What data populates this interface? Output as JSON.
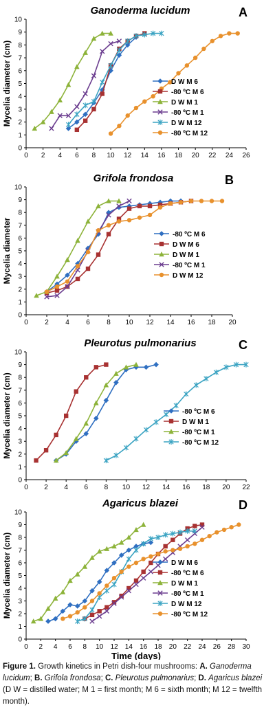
{
  "chart_data": [
    {
      "type": "line",
      "title": "Ganoderma lucidum",
      "letter": "A",
      "ylabel": "Mycelia diameter (cm)",
      "xlabel": "",
      "xlim": [
        0,
        26
      ],
      "ylim": [
        0,
        10
      ],
      "xticks": [
        0,
        2,
        4,
        6,
        8,
        10,
        12,
        14,
        16,
        18,
        20,
        22,
        24,
        26
      ],
      "yticks": [
        0,
        1,
        2,
        3,
        4,
        5,
        6,
        7,
        8,
        9,
        10
      ],
      "legend_position": "bottom-right",
      "series": [
        {
          "name": "D W M 6",
          "color": "#2f6fc1",
          "marker": "diamond",
          "x": [
            5,
            6,
            7,
            8,
            9,
            10,
            11,
            12,
            13
          ],
          "y": [
            1.5,
            2.0,
            2.6,
            3.5,
            4.5,
            6.0,
            7.2,
            8.0,
            8.6
          ]
        },
        {
          "name": "-80 ºC M 6",
          "color": "#a83232",
          "marker": "square",
          "x": [
            6,
            7,
            8,
            9,
            10,
            11,
            12,
            13,
            14
          ],
          "y": [
            1.4,
            2.1,
            3.0,
            4.2,
            6.4,
            7.7,
            8.3,
            8.7,
            8.9
          ]
        },
        {
          "name": "D W M 1",
          "color": "#8db33a",
          "marker": "triangle",
          "x": [
            1,
            2,
            3,
            4,
            5,
            6,
            7,
            8,
            9,
            10
          ],
          "y": [
            1.5,
            2.0,
            2.8,
            3.7,
            4.9,
            6.3,
            7.4,
            8.5,
            8.9,
            8.9
          ]
        },
        {
          "name": "-80 ºC M 1",
          "color": "#6b3d8f",
          "marker": "x",
          "x": [
            3,
            4,
            5,
            6,
            7,
            8,
            9,
            10,
            11
          ],
          "y": [
            1.5,
            2.5,
            2.5,
            3.2,
            4.2,
            5.6,
            7.5,
            8.1,
            8.3
          ]
        },
        {
          "name": "D W M 12",
          "color": "#3aa3c2",
          "marker": "star",
          "x": [
            5,
            6,
            7,
            8,
            9,
            10,
            11,
            12,
            13,
            14,
            15,
            16
          ],
          "y": [
            1.8,
            2.6,
            3.3,
            3.6,
            5.1,
            6.4,
            7.6,
            8.3,
            8.7,
            8.8,
            8.9,
            8.9
          ]
        },
        {
          "name": "-80 ºC M 12",
          "color": "#e8912d",
          "marker": "circle",
          "x": [
            10,
            11,
            12,
            13,
            14,
            15,
            16,
            17,
            18,
            19,
            20,
            21,
            22,
            23,
            24,
            25
          ],
          "y": [
            1.1,
            1.7,
            2.5,
            3.1,
            3.6,
            4.0,
            4.6,
            5.1,
            5.8,
            6.4,
            7.0,
            7.7,
            8.3,
            8.7,
            8.9,
            8.9
          ]
        }
      ]
    },
    {
      "type": "line",
      "title": "Grifola frondosa",
      "letter": "B",
      "ylabel": "Mycelia diameter",
      "xlabel": "",
      "xlim": [
        0,
        20
      ],
      "ylim": [
        0,
        10
      ],
      "xticks": [
        0,
        2,
        4,
        6,
        8,
        10,
        12,
        14,
        16,
        18,
        20
      ],
      "yticks": [
        0,
        1,
        2,
        3,
        4,
        5,
        6,
        7,
        8,
        9,
        10
      ],
      "legend_position": "right",
      "series": [
        {
          "name": "-80 ºC M 6",
          "color": "#2f6fc1",
          "marker": "diamond",
          "x": [
            2,
            3,
            4,
            5,
            6,
            7,
            8,
            9,
            10,
            11,
            12,
            13,
            14,
            15
          ],
          "y": [
            1.8,
            2.4,
            3.1,
            4.0,
            5.2,
            6.3,
            8.0,
            8.4,
            8.5,
            8.6,
            8.7,
            8.8,
            8.9,
            8.9
          ]
        },
        {
          "name": "D W M 6",
          "color": "#a83232",
          "marker": "square",
          "x": [
            2,
            3,
            4,
            5,
            6,
            7,
            8,
            9,
            10,
            11,
            12,
            13,
            14,
            15,
            16
          ],
          "y": [
            1.7,
            1.9,
            2.2,
            2.8,
            3.6,
            4.7,
            6.3,
            7.5,
            8.3,
            8.5,
            8.5,
            8.6,
            8.7,
            8.8,
            8.9
          ]
        },
        {
          "name": "D W M 1",
          "color": "#8db33a",
          "marker": "triangle",
          "x": [
            1,
            2,
            3,
            4,
            5,
            6,
            7,
            8,
            9
          ],
          "y": [
            1.5,
            1.8,
            3.0,
            4.3,
            5.8,
            7.3,
            8.5,
            8.9,
            8.9
          ]
        },
        {
          "name": "-80 ºC M 1",
          "color": "#6b3d8f",
          "marker": "x",
          "x": [
            2,
            3,
            4,
            5,
            6,
            7,
            8,
            9,
            10
          ],
          "y": [
            1.4,
            1.5,
            2.2,
            3.5,
            5.0,
            6.5,
            7.8,
            8.5,
            8.9
          ]
        },
        {
          "name": "D W M 12",
          "color": "#e8912d",
          "marker": "circle",
          "x": [
            2,
            3,
            4,
            5,
            6,
            7,
            8,
            9,
            10,
            11,
            12,
            13,
            14,
            15,
            16,
            17,
            18,
            19
          ],
          "y": [
            1.8,
            2.2,
            2.6,
            3.8,
            4.9,
            6.6,
            7.0,
            7.3,
            7.4,
            7.6,
            7.8,
            8.4,
            8.7,
            8.8,
            8.9,
            8.9,
            8.9,
            8.9
          ]
        }
      ]
    },
    {
      "type": "line",
      "title": "Pleurotus pulmonarius",
      "letter": "C",
      "ylabel": "Mycelia diameter (cm)",
      "xlabel": "",
      "xlim": [
        0,
        22
      ],
      "ylim": [
        0,
        10
      ],
      "xticks": [
        0,
        2,
        4,
        6,
        8,
        10,
        12,
        14,
        16,
        18,
        20,
        22
      ],
      "yticks": [
        0,
        1,
        2,
        3,
        4,
        5,
        6,
        7,
        8,
        9,
        10
      ],
      "legend_position": "bottom-right",
      "series": [
        {
          "name": "-80 ºC M 6",
          "color": "#2f6fc1",
          "marker": "diamond",
          "x": [
            3,
            4,
            5,
            6,
            7,
            8,
            9,
            10,
            11,
            12,
            13
          ],
          "y": [
            1.5,
            2.0,
            3.0,
            3.6,
            4.8,
            6.2,
            7.6,
            8.6,
            8.8,
            8.8,
            9.0
          ]
        },
        {
          "name": "D W M 1",
          "color": "#a83232",
          "marker": "square",
          "x": [
            1,
            2,
            3,
            4,
            5,
            6,
            7,
            8
          ],
          "y": [
            1.5,
            2.3,
            3.5,
            5.0,
            6.9,
            8.0,
            8.8,
            9.0
          ]
        },
        {
          "name": "-80 ºC M 1",
          "color": "#8db33a",
          "marker": "triangle",
          "x": [
            3,
            4,
            5,
            6,
            7,
            8,
            9,
            10,
            11
          ],
          "y": [
            1.5,
            2.1,
            3.2,
            4.4,
            6.0,
            7.4,
            8.3,
            8.8,
            9.0
          ]
        },
        {
          "name": "-80 ºC M 12",
          "color": "#3aa3c2",
          "marker": "star",
          "x": [
            8,
            9,
            10,
            11,
            12,
            13,
            14,
            15,
            16,
            17,
            18,
            19,
            20,
            21,
            22
          ],
          "y": [
            1.5,
            1.9,
            2.5,
            3.2,
            3.9,
            4.5,
            5.1,
            5.8,
            6.7,
            7.4,
            7.9,
            8.4,
            8.8,
            9.0,
            9.0
          ]
        }
      ]
    },
    {
      "type": "line",
      "title": "Agaricus blazei",
      "letter": "D",
      "ylabel": "Mycelia diameter (cm)",
      "xlabel": "Time (days)",
      "xlim": [
        0,
        30
      ],
      "ylim": [
        0,
        10
      ],
      "xticks": [
        0,
        2,
        4,
        6,
        8,
        10,
        12,
        14,
        16,
        18,
        20,
        22,
        24,
        26,
        28,
        30
      ],
      "yticks": [
        0,
        1,
        2,
        3,
        4,
        5,
        6,
        7,
        8,
        9,
        10
      ],
      "legend_position": "bottom-right",
      "series": [
        {
          "name": "D W M 6",
          "color": "#2f6fc1",
          "marker": "diamond",
          "x": [
            3,
            4,
            5,
            6,
            7,
            8,
            9,
            10,
            11,
            12,
            13,
            14,
            15,
            16,
            17
          ],
          "y": [
            1.4,
            1.6,
            2.2,
            2.7,
            2.6,
            3.0,
            3.8,
            4.5,
            5.4,
            6.0,
            6.6,
            7.0,
            7.3,
            7.5,
            7.6
          ]
        },
        {
          "name": "-80 ºC M 6",
          "color": "#a83232",
          "marker": "square",
          "x": [
            8,
            9,
            10,
            11,
            12,
            13,
            14,
            15,
            16,
            17,
            18,
            19,
            20,
            21,
            22,
            23,
            24
          ],
          "y": [
            1.6,
            1.9,
            2.2,
            2.5,
            2.9,
            3.4,
            4.0,
            4.6,
            5.3,
            6.0,
            6.7,
            7.3,
            7.8,
            8.3,
            8.7,
            8.9,
            9.0
          ]
        },
        {
          "name": "D W M 1",
          "color": "#8db33a",
          "marker": "triangle",
          "x": [
            1,
            2,
            3,
            4,
            5,
            6,
            7,
            8,
            9,
            10,
            11,
            12,
            13,
            14,
            15,
            16
          ],
          "y": [
            1.4,
            1.6,
            2.4,
            3.2,
            3.7,
            4.6,
            5.1,
            5.7,
            6.4,
            6.9,
            7.1,
            7.3,
            7.6,
            8.0,
            8.6,
            9.0
          ]
        },
        {
          "name": "-80 ºC M 1",
          "color": "#6b3d8f",
          "marker": "x",
          "x": [
            9,
            10,
            11,
            12,
            13,
            14,
            15,
            16,
            17,
            18,
            19,
            20,
            21,
            22,
            23,
            24
          ],
          "y": [
            1.4,
            1.8,
            2.2,
            2.8,
            3.3,
            3.8,
            4.3,
            4.8,
            5.3,
            5.8,
            6.3,
            6.8,
            7.3,
            7.8,
            8.3,
            8.8
          ]
        },
        {
          "name": "D W M 12",
          "color": "#3aa3c2",
          "marker": "star",
          "x": [
            7,
            8,
            9,
            10,
            11,
            12,
            13,
            14,
            15,
            16,
            17,
            18,
            19,
            20,
            21,
            22,
            23
          ],
          "y": [
            1.4,
            1.6,
            2.3,
            3.3,
            3.8,
            4.3,
            5.3,
            6.3,
            7.0,
            7.5,
            7.9,
            8.0,
            8.2,
            8.3,
            8.4,
            8.5,
            8.5
          ]
        },
        {
          "name": "-80 ºC M 12",
          "color": "#e8912d",
          "marker": "circle",
          "x": [
            5,
            6,
            7,
            8,
            9,
            10,
            11,
            12,
            13,
            14,
            15,
            16,
            17,
            18,
            19,
            20,
            21,
            22,
            23,
            24,
            25,
            26,
            27,
            28,
            29
          ],
          "y": [
            1.6,
            1.8,
            2.1,
            2.5,
            3.0,
            3.6,
            4.2,
            4.8,
            5.3,
            5.7,
            6.0,
            6.3,
            6.5,
            6.7,
            6.9,
            7.0,
            7.1,
            7.3,
            7.5,
            7.8,
            8.1,
            8.4,
            8.6,
            8.8,
            9.0
          ]
        }
      ]
    }
  ],
  "caption": {
    "label": "Figure 1.",
    "text": " Growth kinetics in Petri dish-four mushrooms: ",
    "parts": [
      {
        "b": "A.",
        "i": "Ganoderma lucidum",
        "t": "; "
      },
      {
        "b": "B.",
        "i": "Grifola frondosa",
        "t": "; "
      },
      {
        "b": "C.",
        "i": "Pleurotus pulmonarius",
        "t": "; "
      },
      {
        "b": "D.",
        "i": "Agaricus blazei",
        "t": " "
      }
    ],
    "abbrev": "(D W = distilled water; M 1 = first month; M 6 = sixth month; M 12 = twelfth month)."
  }
}
